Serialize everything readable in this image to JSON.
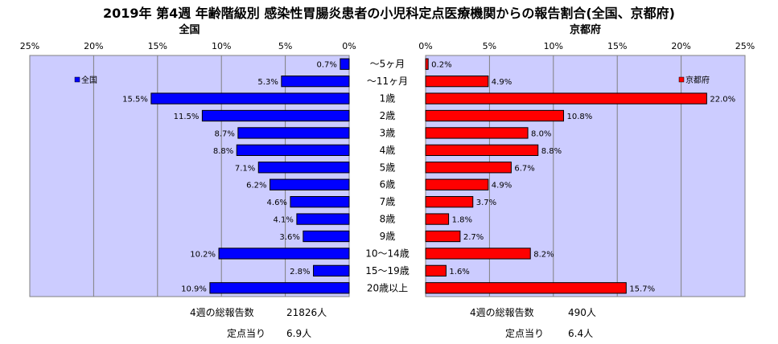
{
  "title": "2019年 第4週 年齢階級別 感染性胃腸炎患者の小児科定点医療機関からの報告割合(全国、京都府)",
  "chart_data": [
    {
      "type": "bar",
      "orientation": "horizontal",
      "title": "全国",
      "legend": "全国",
      "legend_position": "top-left",
      "color": "#0000ff",
      "xlim": [
        0,
        25
      ],
      "x_reversed": true,
      "xticks": [
        "25%",
        "20%",
        "15%",
        "10%",
        "5%",
        "0%"
      ],
      "grid": true,
      "categories": [
        "～5ヶ月",
        "～11ヶ月",
        "1歳",
        "2歳",
        "3歳",
        "4歳",
        "5歳",
        "6歳",
        "7歳",
        "8歳",
        "9歳",
        "10～14歳",
        "15～19歳",
        "20歳以上"
      ],
      "values": [
        0.7,
        5.3,
        15.5,
        11.5,
        8.7,
        8.8,
        7.1,
        6.2,
        4.6,
        4.1,
        3.6,
        10.2,
        2.8,
        10.9
      ],
      "labels": [
        "0.7%",
        "5.3%",
        "15.5%",
        "11.5%",
        "8.7%",
        "8.8%",
        "7.1%",
        "6.2%",
        "4.6%",
        "4.1%",
        "3.6%",
        "10.2%",
        "2.8%",
        "10.9%"
      ]
    },
    {
      "type": "bar",
      "orientation": "horizontal",
      "title": "京都府",
      "legend": "京都府",
      "legend_position": "top-right",
      "color": "#ff0000",
      "xlim": [
        0,
        25
      ],
      "x_reversed": false,
      "xticks": [
        "0%",
        "5%",
        "10%",
        "15%",
        "20%",
        "25%"
      ],
      "grid": true,
      "categories": [
        "～5ヶ月",
        "～11ヶ月",
        "1歳",
        "2歳",
        "3歳",
        "4歳",
        "5歳",
        "6歳",
        "7歳",
        "8歳",
        "9歳",
        "10～14歳",
        "15～19歳",
        "20歳以上"
      ],
      "values": [
        0.2,
        4.9,
        22.0,
        10.8,
        8.0,
        8.8,
        6.7,
        4.9,
        3.7,
        1.8,
        2.7,
        8.2,
        1.6,
        15.7
      ],
      "labels": [
        "0.2%",
        "4.9%",
        "22.0%",
        "10.8%",
        "8.0%",
        "8.8%",
        "6.7%",
        "4.9%",
        "3.7%",
        "1.8%",
        "2.7%",
        "8.2%",
        "1.6%",
        "15.7%"
      ]
    }
  ],
  "footer": {
    "national": {
      "total_label": "4週の総報告数",
      "total_value": "21826人",
      "per_label": "定点当り",
      "per_value": "6.9人"
    },
    "kyoto": {
      "total_label": "4週の総報告数",
      "total_value": "490人",
      "per_label": "定点当り",
      "per_value": "6.4人"
    }
  }
}
